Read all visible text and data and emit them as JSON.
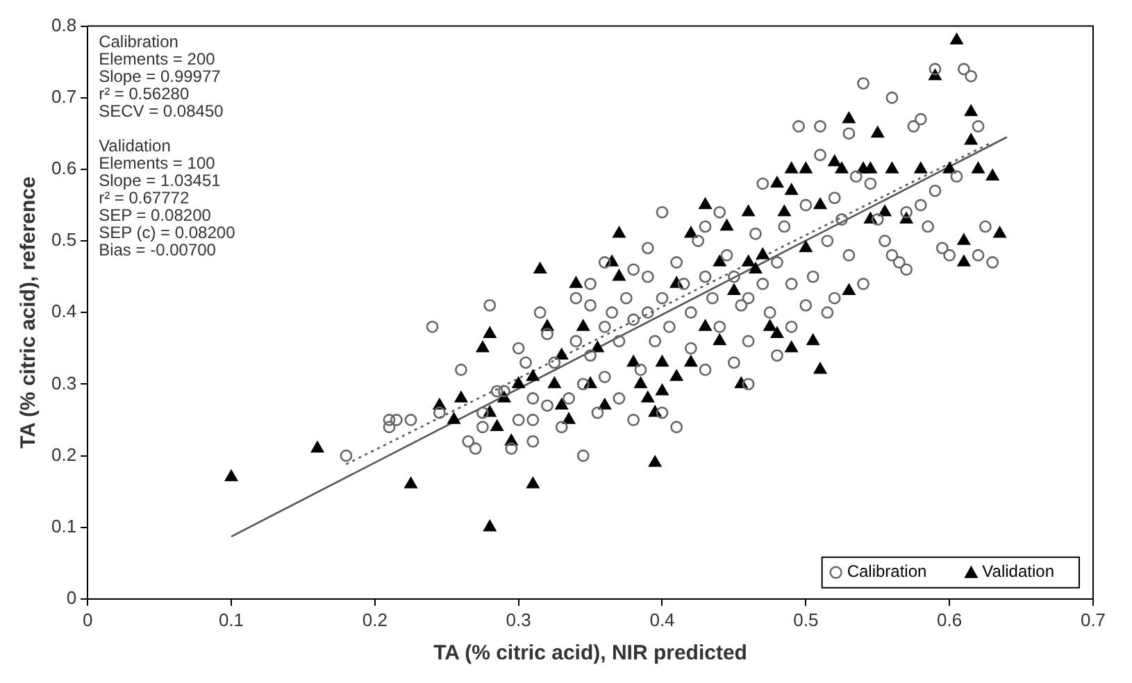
{
  "chart_data": {
    "type": "scatter",
    "xlabel": "TA (% citric acid), NIR predicted",
    "ylabel": "TA (% citric acid), reference",
    "xlim": [
      0,
      0.7
    ],
    "xticks": [
      0,
      0.1,
      0.2,
      0.3,
      0.4,
      0.5,
      0.6,
      0.7
    ],
    "ylim": [
      0,
      0.8
    ],
    "yticks": [
      0,
      0.1,
      0.2,
      0.3,
      0.4,
      0.5,
      0.6,
      0.7,
      0.8
    ],
    "grid": false,
    "legend": "bottom right",
    "annotations": [
      "Calibration\nElements = 200\nSlope = 0.99977\nr² = 0.56280\nSECV = 0.08450",
      "Validation\nElements = 100\nSlope = 1.03451\nr² = 0.67772\nSEP = 0.08200\nSEP (c) = 0.08200\nBias = -0.00700"
    ],
    "series": [
      {
        "name": "Calibration",
        "marker": "circle",
        "color": "#666666",
        "x": [
          0.18,
          0.21,
          0.21,
          0.215,
          0.225,
          0.24,
          0.245,
          0.26,
          0.265,
          0.27,
          0.275,
          0.28,
          0.285,
          0.29,
          0.295,
          0.3,
          0.3,
          0.305,
          0.31,
          0.31,
          0.315,
          0.32,
          0.32,
          0.325,
          0.33,
          0.335,
          0.34,
          0.34,
          0.345,
          0.345,
          0.35,
          0.35,
          0.355,
          0.36,
          0.36,
          0.36,
          0.365,
          0.37,
          0.37,
          0.375,
          0.38,
          0.38,
          0.385,
          0.39,
          0.39,
          0.39,
          0.395,
          0.4,
          0.4,
          0.4,
          0.405,
          0.41,
          0.41,
          0.415,
          0.42,
          0.42,
          0.425,
          0.43,
          0.43,
          0.435,
          0.44,
          0.44,
          0.445,
          0.45,
          0.45,
          0.455,
          0.46,
          0.46,
          0.465,
          0.47,
          0.47,
          0.475,
          0.48,
          0.48,
          0.485,
          0.49,
          0.49,
          0.495,
          0.5,
          0.5,
          0.505,
          0.51,
          0.51,
          0.515,
          0.515,
          0.52,
          0.52,
          0.525,
          0.53,
          0.53,
          0.535,
          0.54,
          0.54,
          0.545,
          0.55,
          0.555,
          0.56,
          0.56,
          0.565,
          0.57,
          0.57,
          0.575,
          0.58,
          0.58,
          0.585,
          0.59,
          0.59,
          0.595,
          0.6,
          0.605,
          0.61,
          0.615,
          0.62,
          0.62,
          0.625,
          0.63,
          0.35,
          0.38,
          0.43,
          0.46,
          0.31,
          0.275
        ],
        "values": [
          0.2,
          0.25,
          0.24,
          0.25,
          0.25,
          0.38,
          0.26,
          0.32,
          0.22,
          0.21,
          0.24,
          0.41,
          0.29,
          0.29,
          0.21,
          0.35,
          0.25,
          0.33,
          0.28,
          0.22,
          0.4,
          0.37,
          0.27,
          0.33,
          0.24,
          0.28,
          0.36,
          0.42,
          0.3,
          0.2,
          0.41,
          0.34,
          0.26,
          0.47,
          0.38,
          0.31,
          0.4,
          0.36,
          0.28,
          0.42,
          0.46,
          0.39,
          0.32,
          0.45,
          0.49,
          0.4,
          0.36,
          0.54,
          0.42,
          0.26,
          0.38,
          0.47,
          0.24,
          0.44,
          0.4,
          0.35,
          0.5,
          0.45,
          0.32,
          0.42,
          0.54,
          0.38,
          0.48,
          0.33,
          0.45,
          0.41,
          0.36,
          0.3,
          0.51,
          0.44,
          0.58,
          0.4,
          0.34,
          0.47,
          0.52,
          0.44,
          0.38,
          0.66,
          0.41,
          0.55,
          0.45,
          0.62,
          0.66,
          0.5,
          0.4,
          0.42,
          0.56,
          0.53,
          0.48,
          0.65,
          0.59,
          0.72,
          0.44,
          0.58,
          0.53,
          0.5,
          0.7,
          0.48,
          0.47,
          0.54,
          0.46,
          0.66,
          0.67,
          0.55,
          0.52,
          0.57,
          0.74,
          0.49,
          0.48,
          0.59,
          0.74,
          0.73,
          0.48,
          0.66,
          0.52,
          0.47,
          0.44,
          0.25,
          0.52,
          0.42,
          0.25,
          0.26
        ]
      },
      {
        "name": "Validation",
        "marker": "triangle",
        "color": "#000000",
        "x": [
          0.1,
          0.16,
          0.225,
          0.245,
          0.255,
          0.26,
          0.275,
          0.28,
          0.28,
          0.28,
          0.285,
          0.29,
          0.295,
          0.3,
          0.31,
          0.31,
          0.315,
          0.32,
          0.325,
          0.33,
          0.33,
          0.34,
          0.345,
          0.35,
          0.355,
          0.36,
          0.365,
          0.37,
          0.38,
          0.385,
          0.39,
          0.395,
          0.395,
          0.4,
          0.41,
          0.41,
          0.42,
          0.42,
          0.43,
          0.43,
          0.44,
          0.44,
          0.445,
          0.45,
          0.455,
          0.46,
          0.465,
          0.47,
          0.475,
          0.48,
          0.48,
          0.485,
          0.49,
          0.49,
          0.5,
          0.5,
          0.505,
          0.51,
          0.51,
          0.52,
          0.525,
          0.53,
          0.53,
          0.54,
          0.545,
          0.55,
          0.56,
          0.57,
          0.58,
          0.59,
          0.6,
          0.605,
          0.61,
          0.61,
          0.615,
          0.615,
          0.62,
          0.63,
          0.635,
          0.545,
          0.555,
          0.49,
          0.46,
          0.4,
          0.335,
          0.37
        ],
        "values": [
          0.17,
          0.21,
          0.16,
          0.27,
          0.25,
          0.28,
          0.35,
          0.37,
          0.1,
          0.26,
          0.24,
          0.28,
          0.22,
          0.3,
          0.16,
          0.31,
          0.46,
          0.38,
          0.3,
          0.34,
          0.27,
          0.44,
          0.38,
          0.3,
          0.35,
          0.27,
          0.47,
          0.45,
          0.33,
          0.3,
          0.28,
          0.19,
          0.26,
          0.33,
          0.31,
          0.44,
          0.51,
          0.33,
          0.55,
          0.38,
          0.36,
          0.47,
          0.52,
          0.43,
          0.3,
          0.54,
          0.46,
          0.48,
          0.38,
          0.58,
          0.37,
          0.54,
          0.35,
          0.6,
          0.49,
          0.6,
          0.36,
          0.32,
          0.55,
          0.61,
          0.6,
          0.67,
          0.43,
          0.6,
          0.6,
          0.65,
          0.6,
          0.53,
          0.6,
          0.73,
          0.6,
          0.78,
          0.5,
          0.47,
          0.68,
          0.64,
          0.6,
          0.59,
          0.51,
          0.53,
          0.54,
          0.57,
          0.47,
          0.29,
          0.25,
          0.51
        ]
      },
      {
        "type": "line",
        "line_style": "dotted",
        "color": "#555555",
        "x": [
          0.18,
          0.63
        ],
        "values": [
          0.188,
          0.638
        ]
      },
      {
        "type": "line",
        "line_style": "solid",
        "color": "#555555",
        "x": [
          0.1,
          0.64
        ],
        "values": [
          0.087,
          0.645
        ]
      }
    ]
  }
}
